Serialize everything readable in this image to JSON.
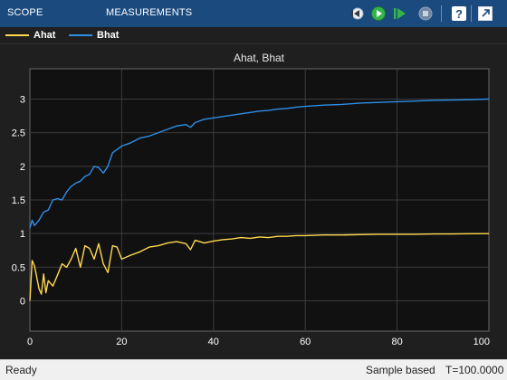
{
  "toolstrip": {
    "tabs": [
      {
        "label": "SCOPE"
      },
      {
        "label": "MEASUREMENTS"
      }
    ],
    "buttons": [
      "step-back-icon",
      "run-icon",
      "step-forward-icon",
      "stop-icon",
      "help-icon",
      "undock-icon"
    ]
  },
  "legend": {
    "items": [
      {
        "label": "Ahat",
        "color": "#ffd84d"
      },
      {
        "label": "Bhat",
        "color": "#2e8ee6"
      }
    ]
  },
  "chart_data": {
    "type": "line",
    "title": "Ahat, Bhat",
    "xlabel": "",
    "ylabel": "",
    "xlim": [
      0,
      100
    ],
    "ylim": [
      -0.45,
      3.45
    ],
    "xticks": [
      "0",
      "20",
      "40",
      "60",
      "80",
      "100"
    ],
    "yticks": [
      "0",
      "0.5",
      "1",
      "1.5",
      "2",
      "2.5",
      "3"
    ],
    "grid": true,
    "series": [
      {
        "name": "Ahat",
        "color": "#ffd84d",
        "x": [
          0,
          0.5,
          1,
          1.5,
          2,
          2.5,
          3,
          3.5,
          4,
          5,
          6,
          7,
          8,
          9,
          10,
          11,
          12,
          13,
          14,
          15,
          16,
          17,
          18,
          19,
          20,
          22,
          24,
          26,
          28,
          30,
          32,
          34,
          35,
          36,
          38,
          40,
          42,
          44,
          46,
          48,
          50,
          52,
          54,
          56,
          58,
          60,
          64,
          68,
          72,
          76,
          80,
          84,
          88,
          92,
          96,
          100
        ],
        "y": [
          0.0,
          0.6,
          0.52,
          0.35,
          0.18,
          0.1,
          0.4,
          0.12,
          0.3,
          0.22,
          0.38,
          0.55,
          0.5,
          0.62,
          0.78,
          0.5,
          0.82,
          0.78,
          0.62,
          0.85,
          0.55,
          0.42,
          0.82,
          0.8,
          0.62,
          0.68,
          0.73,
          0.8,
          0.82,
          0.86,
          0.88,
          0.85,
          0.76,
          0.9,
          0.86,
          0.89,
          0.91,
          0.92,
          0.94,
          0.93,
          0.95,
          0.94,
          0.96,
          0.96,
          0.97,
          0.97,
          0.98,
          0.98,
          0.985,
          0.99,
          0.99,
          0.99,
          0.995,
          0.995,
          0.998,
          1.0
        ]
      },
      {
        "name": "Bhat",
        "color": "#2e8ee6",
        "x": [
          0,
          0.5,
          1,
          2,
          3,
          4,
          5,
          6,
          7,
          8,
          9,
          10,
          11,
          12,
          13,
          14,
          15,
          16,
          17,
          18,
          19,
          20,
          22,
          24,
          26,
          28,
          30,
          32,
          34,
          35,
          36,
          38,
          40,
          42,
          44,
          46,
          48,
          50,
          52,
          54,
          56,
          58,
          60,
          64,
          68,
          72,
          76,
          80,
          84,
          88,
          92,
          96,
          100
        ],
        "y": [
          1.08,
          1.2,
          1.12,
          1.2,
          1.32,
          1.35,
          1.5,
          1.52,
          1.5,
          1.62,
          1.7,
          1.75,
          1.78,
          1.85,
          1.88,
          2.0,
          1.98,
          1.9,
          2.0,
          2.2,
          2.25,
          2.3,
          2.35,
          2.42,
          2.45,
          2.5,
          2.55,
          2.6,
          2.62,
          2.58,
          2.65,
          2.7,
          2.72,
          2.74,
          2.76,
          2.78,
          2.8,
          2.82,
          2.83,
          2.85,
          2.86,
          2.88,
          2.89,
          2.91,
          2.92,
          2.94,
          2.95,
          2.96,
          2.97,
          2.98,
          2.985,
          2.99,
          3.0
        ]
      }
    ]
  },
  "status": {
    "left": "Ready",
    "mode": "Sample based",
    "time": "T=100.0000"
  }
}
